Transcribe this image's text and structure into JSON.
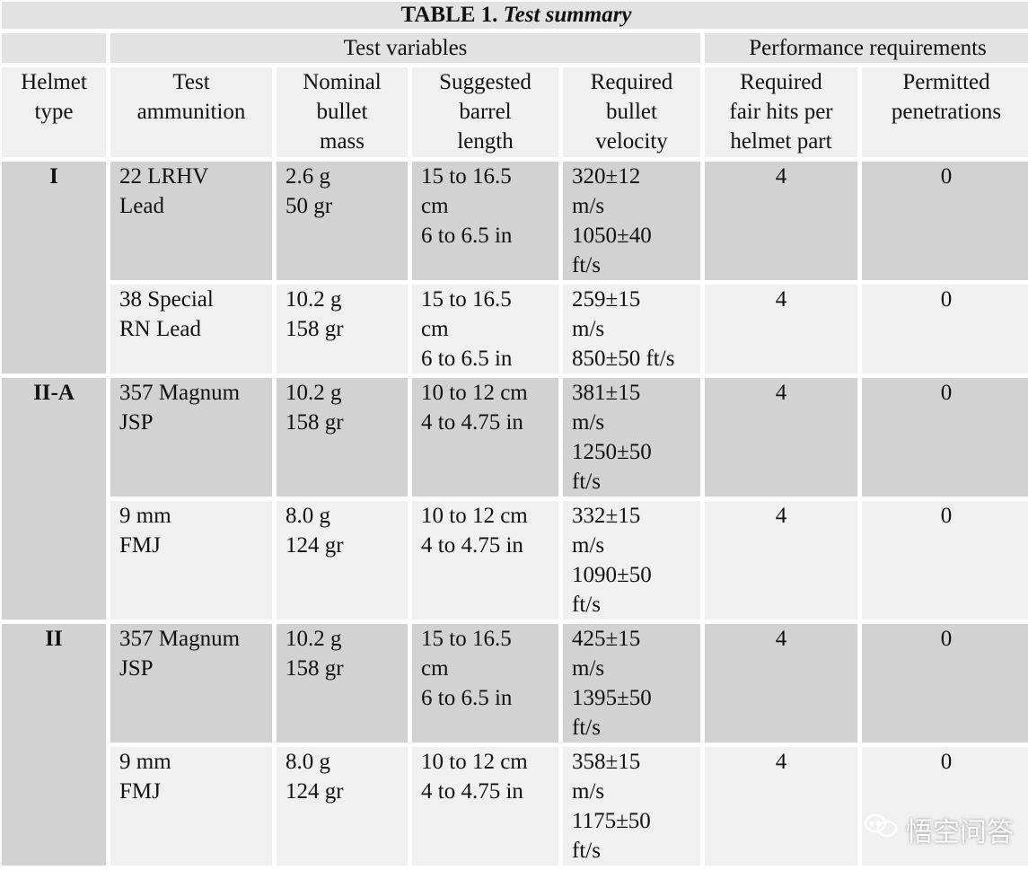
{
  "table": {
    "title_prefix": "TABLE 1.",
    "title_italic": "Test summary",
    "groups": {
      "test_variables": "Test variables",
      "performance": "Performance requirements"
    },
    "headers": {
      "helmet_type": [
        "Helmet",
        "type"
      ],
      "test_ammunition": [
        "Test",
        "ammunition"
      ],
      "nominal_mass": [
        "Nominal",
        "bullet",
        "mass"
      ],
      "barrel_length": [
        "Suggested",
        "barrel",
        "length"
      ],
      "velocity": [
        "Required",
        "bullet",
        "velocity"
      ],
      "fair_hits": [
        "Required",
        "fair hits per",
        "helmet part"
      ],
      "penetrations": [
        "Permitted",
        "penetrations"
      ]
    },
    "helmet_types": [
      {
        "type": "I",
        "rows": [
          {
            "ammo": [
              "22 LRHV",
              "Lead"
            ],
            "mass": [
              "2.6 g",
              "50 gr"
            ],
            "barrel": [
              "15 to 16.5",
              "cm",
              "6 to 6.5 in"
            ],
            "velocity": [
              "320±12",
              "m/s",
              "1050±40",
              "ft/s"
            ],
            "hits": "4",
            "penetrations": "0"
          },
          {
            "ammo": [
              "38 Special",
              "RN Lead"
            ],
            "mass": [
              "10.2 g",
              "158 gr"
            ],
            "barrel": [
              "15 to 16.5",
              "cm",
              "6 to 6.5 in"
            ],
            "velocity": [
              "259±15",
              "m/s",
              "850±50 ft/s"
            ],
            "hits": "4",
            "penetrations": "0"
          }
        ]
      },
      {
        "type": "II-A",
        "rows": [
          {
            "ammo": [
              "357 Magnum",
              "JSP"
            ],
            "mass": [
              "10.2 g",
              "158 gr"
            ],
            "barrel": [
              "10 to 12 cm",
              "4 to 4.75 in"
            ],
            "velocity": [
              "381±15",
              "m/s",
              "1250±50",
              "ft/s"
            ],
            "hits": "4",
            "penetrations": "0"
          },
          {
            "ammo": [
              "9 mm",
              "FMJ"
            ],
            "mass": [
              "8.0 g",
              "124 gr"
            ],
            "barrel": [
              "10 to 12 cm",
              "4 to 4.75 in"
            ],
            "velocity": [
              "332±15",
              "m/s",
              "1090±50",
              "ft/s"
            ],
            "hits": "4",
            "penetrations": "0"
          }
        ]
      },
      {
        "type": "II",
        "rows": [
          {
            "ammo": [
              "357 Magnum",
              "JSP"
            ],
            "mass": [
              "10.2 g",
              "158 gr"
            ],
            "barrel": [
              "15 to 16.5",
              "cm",
              "6 to 6.5 in"
            ],
            "velocity": [
              "425±15",
              "m/s",
              "1395±50",
              "ft/s"
            ],
            "hits": "4",
            "penetrations": "0"
          },
          {
            "ammo": [
              "9 mm",
              "FMJ"
            ],
            "mass": [
              "8.0 g",
              "124 gr"
            ],
            "barrel": [
              "10 to 12 cm",
              "4 to 4.75 in"
            ],
            "velocity": [
              "358±15",
              "m/s",
              "1175±50",
              "ft/s"
            ],
            "hits": "4",
            "penetrations": "0"
          }
        ]
      }
    ]
  },
  "watermark": {
    "text": "悟空问答",
    "icon": "chat-bubbles-icon"
  },
  "colors": {
    "dark_fill": "#d2d2d2",
    "light_fill": "#f0f0f0",
    "header_fill": "#e2e2e2"
  }
}
